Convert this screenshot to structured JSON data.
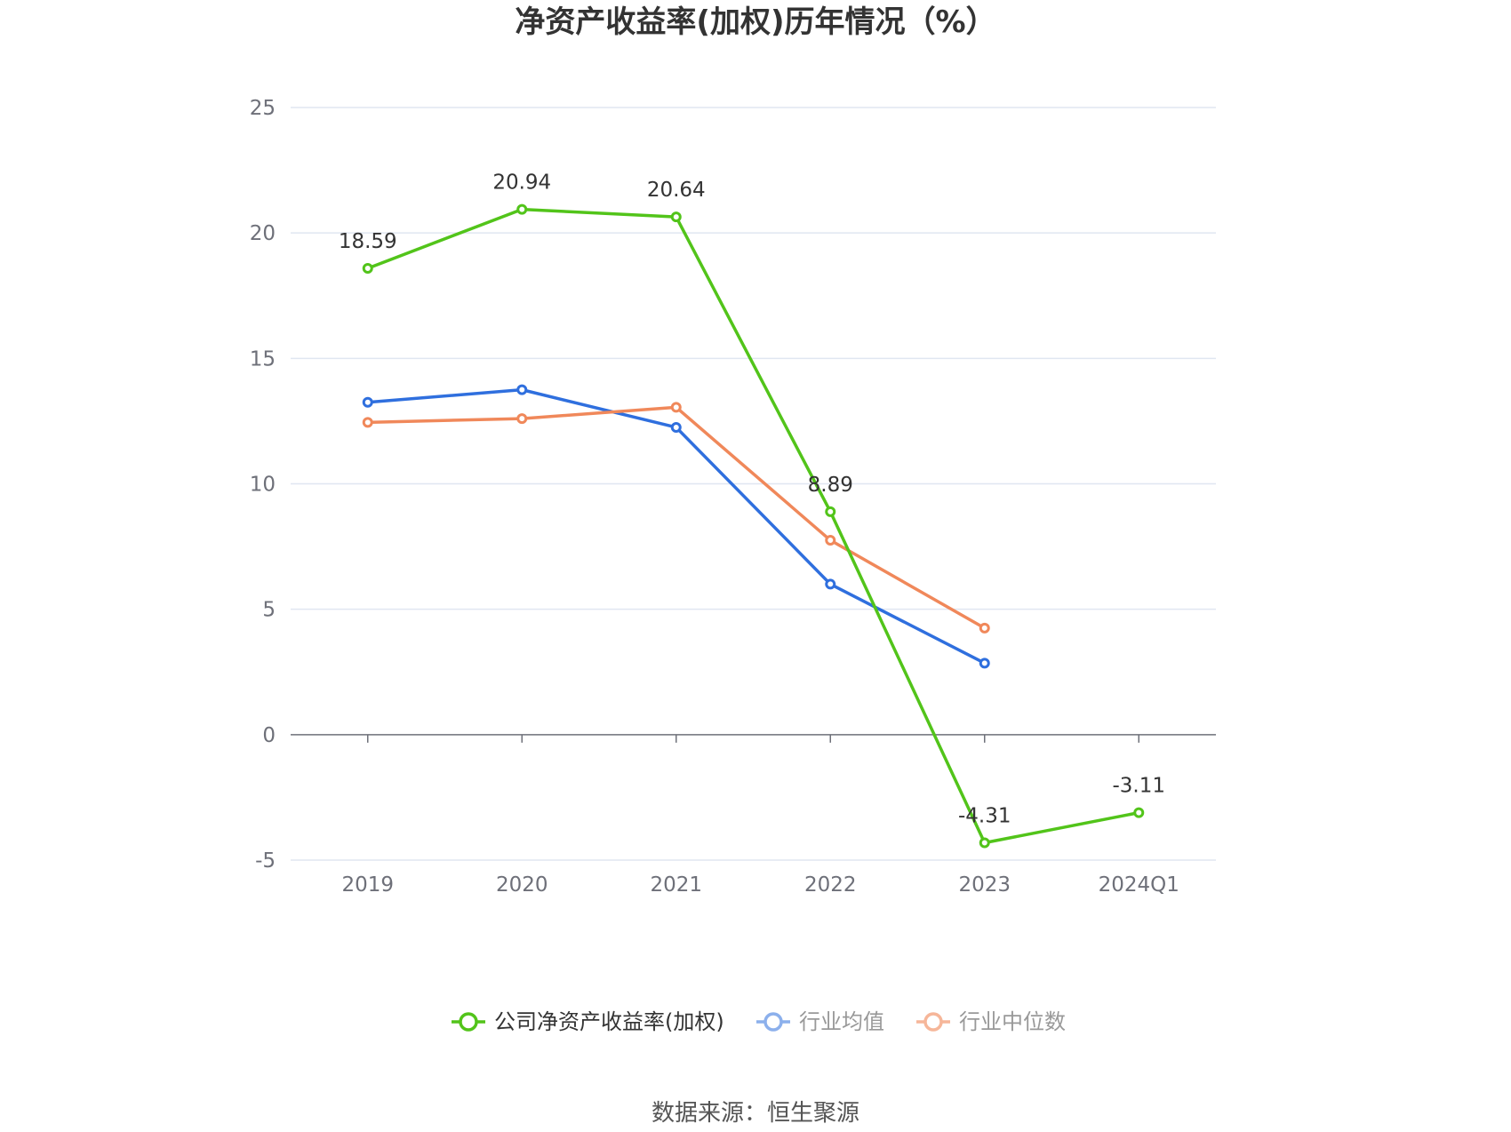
{
  "chart_data": {
    "type": "line",
    "title": "净资产收益率(加权)历年情况（%）",
    "categories": [
      "2019",
      "2020",
      "2021",
      "2022",
      "2023",
      "2024Q1"
    ],
    "ylim": [
      -5,
      25
    ],
    "yticks": [
      "25",
      "20",
      "15",
      "10",
      "5",
      "0",
      "-5"
    ],
    "grid": true,
    "legend_position": "bottom-center",
    "series": [
      {
        "name": "公司净资产收益率(加权)",
        "color": "#52c41a",
        "values": [
          18.59,
          20.94,
          20.64,
          8.89,
          -4.31,
          -3.11
        ],
        "labels": [
          "18.59",
          "20.94",
          "20.64",
          "8.89",
          "-4.31",
          "-3.11"
        ]
      },
      {
        "name": "行业均值",
        "color": "#2f6fde",
        "values": [
          13.25,
          13.75,
          12.25,
          6.0,
          2.85,
          null
        ]
      },
      {
        "name": "行业中位数",
        "color": "#f0885a",
        "values": [
          12.45,
          12.6,
          13.05,
          7.75,
          4.25,
          null
        ]
      }
    ],
    "legend_colors": [
      "#52c41a",
      "#8cb0ec",
      "#f6b699"
    ],
    "legend_text_colors": [
      "#333333",
      "#999999",
      "#999999"
    ],
    "source": "数据来源：恒生聚源"
  }
}
